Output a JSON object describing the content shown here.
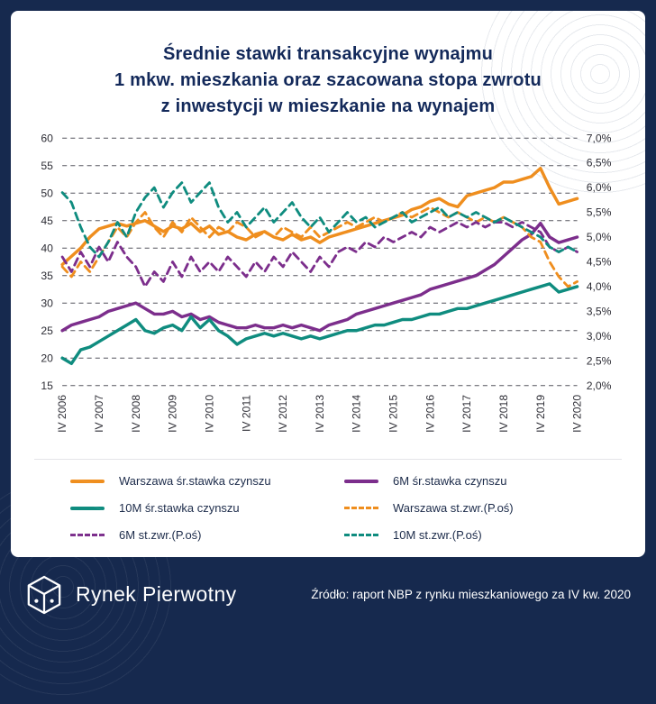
{
  "title": {
    "lines": [
      "Średnie stawki transakcyjne wynajmu",
      "1 mkw. mieszkania oraz szacowana stopa zwrotu",
      "z inwestycji w mieszkanie na wynajem"
    ]
  },
  "colors": {
    "orange": "#EF8E1E",
    "purple": "#7C2E8C",
    "teal": "#0F8C7F",
    "navy": "#16294E",
    "title_navy": "#13295A",
    "grid": "#55555E",
    "tick": "#2D2D35"
  },
  "chart_data": {
    "type": "line",
    "title": "Średnie stawki transakcyjne wynajmu 1 mkw. mieszkania oraz szacowana stopa zwrotu z inwestycji w mieszkanie na wynajem",
    "grid": true,
    "legend_position": "bottom",
    "left_axis": {
      "min": 15,
      "max": 60,
      "ticks": [
        60,
        55,
        50,
        45,
        40,
        35,
        30,
        25,
        20,
        15
      ]
    },
    "right_axis": {
      "min": 2.0,
      "max": 7.0,
      "ticks": [
        "7,0%",
        "6,5%",
        "6,0%",
        "5,5%",
        "5,0%",
        "4,5%",
        "4,0%",
        "3,5%",
        "3,0%",
        "2,5%",
        "2,0%"
      ]
    },
    "x_tick_every": 4,
    "x": [
      "IV 2006",
      "I 2007",
      "II 2007",
      "III 2007",
      "IV 2007",
      "I 2008",
      "II 2008",
      "III 2008",
      "IV 2008",
      "I 2009",
      "II 2009",
      "III 2009",
      "IV 2009",
      "I 2010",
      "II 2010",
      "III 2010",
      "IV 2010",
      "I 2011",
      "II 2011",
      "III 2011",
      "IV 2011",
      "I 2012",
      "II 2012",
      "III 2012",
      "IV 2012",
      "I 2013",
      "II 2013",
      "III 2013",
      "IV 2013",
      "I 2014",
      "II 2014",
      "III 2014",
      "IV 2014",
      "I 2015",
      "II 2015",
      "III 2015",
      "IV 2015",
      "I 2016",
      "II 2016",
      "III 2016",
      "IV 2016",
      "I 2017",
      "II 2017",
      "III 2017",
      "IV 2017",
      "I 2018",
      "II 2018",
      "III 2018",
      "IV 2018",
      "I 2019",
      "II 2019",
      "III 2019",
      "IV 2019",
      "I 2020",
      "II 2020",
      "III 2020",
      "IV 2020"
    ],
    "series": [
      {
        "name": "Warszawa śr.stawka czynszu",
        "axis": "left",
        "style": "solid",
        "color": "orange",
        "values": [
          37,
          38.5,
          40,
          42,
          43.5,
          44,
          44.5,
          44,
          44.5,
          45,
          44,
          43,
          44,
          43.5,
          44.5,
          43,
          44,
          42.5,
          43,
          42,
          41.5,
          42.5,
          43,
          42,
          41.5,
          42.5,
          41.5,
          42,
          41,
          42,
          42.5,
          43,
          43.5,
          44,
          44.5,
          45,
          45.5,
          46,
          47,
          47.5,
          48.5,
          49,
          48,
          47.5,
          49.5,
          50,
          50.5,
          51,
          52,
          52,
          52.5,
          53,
          54.5,
          51,
          48,
          48.5,
          49
        ]
      },
      {
        "name": "6M śr.stawka czynszu",
        "axis": "left",
        "style": "solid",
        "color": "purple",
        "values": [
          25,
          26,
          26.5,
          27,
          27.5,
          28.5,
          29,
          29.5,
          30,
          29,
          28,
          28,
          28.5,
          27.5,
          28,
          27,
          27.5,
          26.5,
          26,
          25.5,
          25.5,
          26,
          25.5,
          25.5,
          26,
          25.5,
          26,
          25.5,
          25,
          26,
          26.5,
          27,
          28,
          28.5,
          29,
          29.5,
          30,
          30.5,
          31,
          31.5,
          32.5,
          33,
          33.5,
          34,
          34.5,
          35,
          36,
          37,
          38.5,
          40,
          41.5,
          42.5,
          44.5,
          42,
          41,
          41.5,
          42
        ]
      },
      {
        "name": "10M śr.stawka czynszu",
        "axis": "left",
        "style": "solid",
        "color": "teal",
        "values": [
          20,
          19,
          21.5,
          22,
          23,
          24,
          25,
          26,
          27,
          25,
          24.5,
          25.5,
          26,
          25,
          27.5,
          25.5,
          27,
          25,
          24,
          22.5,
          23.5,
          24,
          24.5,
          24,
          24.5,
          24,
          23.5,
          24,
          23.5,
          24,
          24.5,
          25,
          25,
          25.5,
          26,
          26,
          26.5,
          27,
          27,
          27.5,
          28,
          28,
          28.5,
          29,
          29,
          29.5,
          30,
          30.5,
          31,
          31.5,
          32,
          32.5,
          33,
          33.5,
          32,
          32.5,
          33
        ]
      },
      {
        "name": "Warszawa st.zwr.(P.oś)",
        "axis": "right",
        "style": "dashed",
        "color": "orange",
        "values": [
          4.4,
          4.2,
          4.5,
          4.3,
          4.6,
          4.9,
          5.2,
          5.0,
          5.3,
          5.5,
          5.2,
          5.0,
          5.3,
          5.1,
          5.4,
          5.2,
          5.0,
          5.2,
          5.1,
          5.3,
          5.2,
          5.0,
          5.1,
          5.0,
          5.2,
          5.1,
          5.0,
          5.2,
          5.0,
          5.1,
          5.2,
          5.3,
          5.2,
          5.3,
          5.4,
          5.3,
          5.4,
          5.5,
          5.4,
          5.5,
          5.6,
          5.5,
          5.4,
          5.5,
          5.4,
          5.3,
          5.4,
          5.3,
          5.4,
          5.3,
          5.2,
          5.0,
          4.9,
          4.5,
          4.2,
          4.0,
          4.1
        ]
      },
      {
        "name": "6M st.zwr.(P.oś)",
        "axis": "right",
        "style": "dashed",
        "color": "purple",
        "values": [
          4.6,
          4.3,
          4.7,
          4.4,
          4.8,
          4.5,
          4.9,
          4.6,
          4.4,
          4.0,
          4.3,
          4.1,
          4.5,
          4.2,
          4.6,
          4.3,
          4.5,
          4.3,
          4.6,
          4.4,
          4.2,
          4.5,
          4.3,
          4.6,
          4.4,
          4.7,
          4.5,
          4.3,
          4.6,
          4.4,
          4.7,
          4.8,
          4.7,
          4.9,
          4.8,
          5.0,
          4.9,
          5.0,
          5.1,
          5.0,
          5.2,
          5.1,
          5.2,
          5.3,
          5.2,
          5.3,
          5.2,
          5.3,
          5.3,
          5.2,
          5.3,
          5.2,
          5.1,
          4.8,
          4.7,
          4.8,
          4.7
        ]
      },
      {
        "name": "10M st.zwr.(P.oś)",
        "axis": "right",
        "style": "dashed",
        "color": "teal",
        "values": [
          5.9,
          5.7,
          5.2,
          4.8,
          4.6,
          4.9,
          5.3,
          5.0,
          5.5,
          5.8,
          6.0,
          5.6,
          5.9,
          6.1,
          5.7,
          5.9,
          6.1,
          5.6,
          5.3,
          5.5,
          5.2,
          5.4,
          5.6,
          5.3,
          5.5,
          5.7,
          5.4,
          5.2,
          5.4,
          5.1,
          5.3,
          5.5,
          5.3,
          5.4,
          5.2,
          5.3,
          5.4,
          5.5,
          5.3,
          5.4,
          5.5,
          5.6,
          5.4,
          5.5,
          5.4,
          5.5,
          5.4,
          5.3,
          5.4,
          5.3,
          5.2,
          5.1,
          5.0,
          4.8,
          4.7,
          4.8,
          4.7
        ]
      }
    ]
  },
  "legend": {
    "columns": [
      [
        {
          "label": "Warszawa śr.stawka czynszu",
          "color": "orange",
          "style": "solid"
        },
        {
          "label": "10M śr.stawka czynszu",
          "color": "teal",
          "style": "solid"
        },
        {
          "label": "6M st.zwr.(P.oś)",
          "color": "purple",
          "style": "dashed"
        }
      ],
      [
        {
          "label": "6M śr.stawka czynszu",
          "color": "purple",
          "style": "solid"
        },
        {
          "label": "Warszawa st.zwr.(P.oś)",
          "color": "orange",
          "style": "dashed"
        },
        {
          "label": "10M st.zwr.(P.oś)",
          "color": "teal",
          "style": "dashed"
        }
      ]
    ]
  },
  "footer": {
    "brand": "Rynek Pierwotny",
    "source": "Źródło: raport NBP z rynku mieszkaniowego za IV kw. 2020"
  }
}
